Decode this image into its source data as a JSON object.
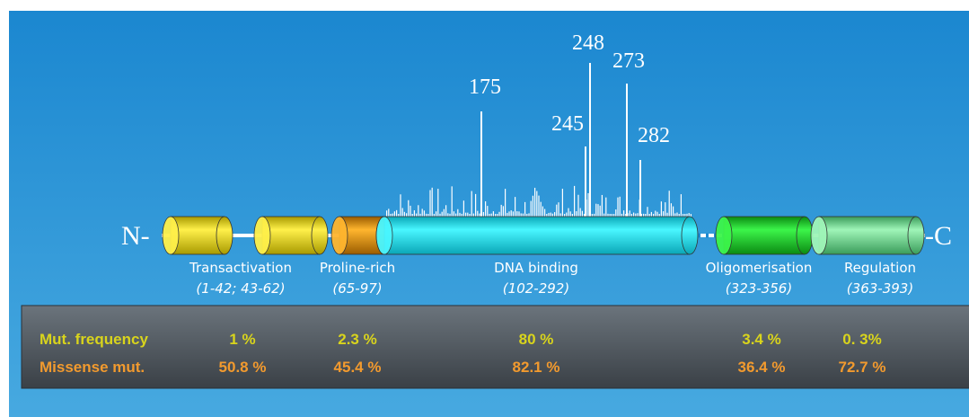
{
  "n_terminus": "N-",
  "c_terminus": "-C",
  "hotspots": [
    "175",
    "248",
    "273",
    "245",
    "282"
  ],
  "domains": [
    {
      "name": "Transactivation",
      "range": "(1-42; 43-62)"
    },
    {
      "name": "Proline-rich",
      "range": "(65-97)"
    },
    {
      "name": "DNA binding",
      "range": "(102-292)"
    },
    {
      "name": "Oligomerisation",
      "range": "(323-356)"
    },
    {
      "name": "Regulation",
      "range": "(363-393)"
    }
  ],
  "table": {
    "rows": [
      {
        "label": "Mut. frequency",
        "values": [
          "1 %",
          "2.3 %",
          "80 %",
          "3.4 %",
          "0. 3%"
        ]
      },
      {
        "label": "Missense mut.",
        "values": [
          "50.8 %",
          "45.4 %",
          "82.1 %",
          "36.4 %",
          "72.7 %"
        ]
      }
    ]
  }
}
